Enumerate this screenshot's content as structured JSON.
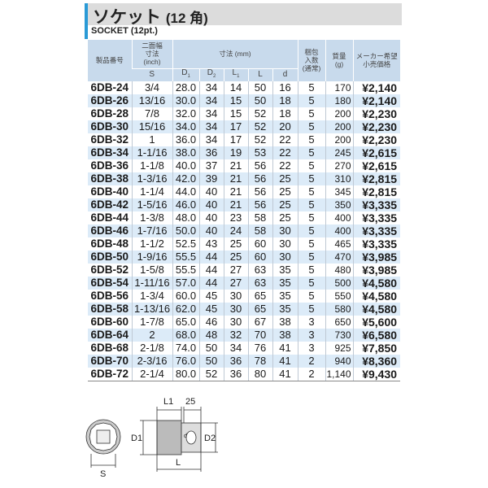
{
  "header": {
    "title": "ソケット",
    "title_suffix": "(12 角)",
    "subtitle": "SOCKET (12pt.)"
  },
  "columns": {
    "part_no": "製品番号",
    "s_l1": "二面幅",
    "s_l2": "寸法",
    "s_l3": "(inch)",
    "dims": "寸法 (mm)",
    "pack_l1": "梱包",
    "pack_l2": "入数",
    "pack_l3": "(通常)",
    "mass_l1": "質量",
    "mass_l2": "(g)",
    "price_l1": "メーカー希望",
    "price_l2": "小売価格",
    "s": "S",
    "d1": "D",
    "d2": "D",
    "l1": "L",
    "l": "L",
    "d": "d"
  },
  "rows": [
    [
      "6DB-24",
      "3/4",
      "28.0",
      "34",
      "14",
      "50",
      "16",
      "5",
      "170",
      "¥2,140"
    ],
    [
      "6DB-26",
      "13/16",
      "30.0",
      "34",
      "15",
      "50",
      "18",
      "5",
      "180",
      "¥2,140"
    ],
    [
      "6DB-28",
      "7/8",
      "32.0",
      "34",
      "15",
      "52",
      "18",
      "5",
      "200",
      "¥2,230"
    ],
    [
      "6DB-30",
      "15/16",
      "34.0",
      "34",
      "17",
      "52",
      "20",
      "5",
      "200",
      "¥2,230"
    ],
    [
      "6DB-32",
      "1",
      "36.0",
      "34",
      "17",
      "52",
      "22",
      "5",
      "200",
      "¥2,230"
    ],
    [
      "6DB-34",
      "1-1/16",
      "38.0",
      "36",
      "19",
      "53",
      "22",
      "5",
      "245",
      "¥2,615"
    ],
    [
      "6DB-36",
      "1-1/8",
      "40.0",
      "37",
      "21",
      "56",
      "22",
      "5",
      "270",
      "¥2,615"
    ],
    [
      "6DB-38",
      "1-3/16",
      "42.0",
      "39",
      "21",
      "56",
      "25",
      "5",
      "310",
      "¥2,815"
    ],
    [
      "6DB-40",
      "1-1/4",
      "44.0",
      "40",
      "21",
      "56",
      "25",
      "5",
      "345",
      "¥2,815"
    ],
    [
      "6DB-42",
      "1-5/16",
      "46.0",
      "40",
      "21",
      "56",
      "25",
      "5",
      "350",
      "¥3,335"
    ],
    [
      "6DB-44",
      "1-3/8",
      "48.0",
      "40",
      "23",
      "58",
      "25",
      "5",
      "400",
      "¥3,335"
    ],
    [
      "6DB-46",
      "1-7/16",
      "50.0",
      "40",
      "24",
      "58",
      "30",
      "5",
      "400",
      "¥3,335"
    ],
    [
      "6DB-48",
      "1-1/2",
      "52.5",
      "43",
      "25",
      "60",
      "30",
      "5",
      "465",
      "¥3,335"
    ],
    [
      "6DB-50",
      "1-9/16",
      "55.5",
      "44",
      "25",
      "60",
      "30",
      "5",
      "470",
      "¥3,985"
    ],
    [
      "6DB-52",
      "1-5/8",
      "55.5",
      "44",
      "27",
      "63",
      "35",
      "5",
      "480",
      "¥3,985"
    ],
    [
      "6DB-54",
      "1-11/16",
      "57.0",
      "44",
      "27",
      "63",
      "35",
      "5",
      "500",
      "¥4,580"
    ],
    [
      "6DB-56",
      "1-3/4",
      "60.0",
      "45",
      "30",
      "65",
      "35",
      "5",
      "550",
      "¥4,580"
    ],
    [
      "6DB-58",
      "1-13/16",
      "62.0",
      "45",
      "30",
      "65",
      "35",
      "5",
      "580",
      "¥4,580"
    ],
    [
      "6DB-60",
      "1-7/8",
      "65.0",
      "46",
      "30",
      "67",
      "38",
      "3",
      "650",
      "¥5,600"
    ],
    [
      "6DB-64",
      "2",
      "68.0",
      "48",
      "32",
      "70",
      "38",
      "3",
      "730",
      "¥6,580"
    ],
    [
      "6DB-68",
      "2-1/8",
      "74.0",
      "50",
      "34",
      "76",
      "41",
      "3",
      "925",
      "¥7,850"
    ],
    [
      "6DB-70",
      "2-3/16",
      "76.0",
      "50",
      "36",
      "78",
      "41",
      "2",
      "940",
      "¥8,360"
    ],
    [
      "6DB-72",
      "2-1/4",
      "80.0",
      "52",
      "36",
      "80",
      "41",
      "2",
      "1,140",
      "¥9,430"
    ]
  ],
  "diagram": {
    "s": "S",
    "d1": "D1",
    "d2": "D2",
    "l1": "L1",
    "l": "L",
    "d": "d",
    "drive": "25"
  }
}
